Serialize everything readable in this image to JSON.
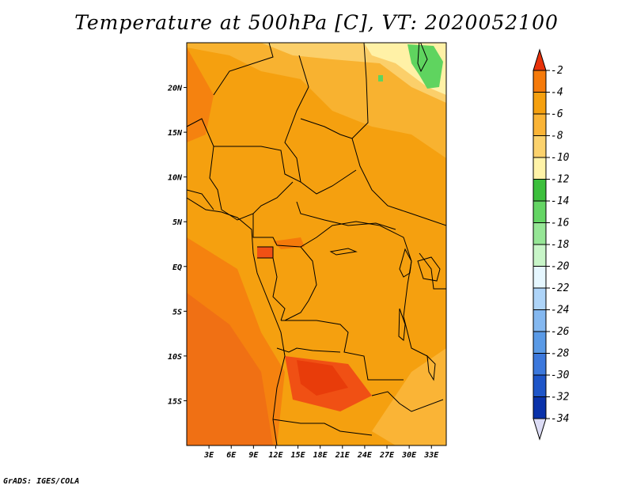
{
  "title": "Temperature at 500hPa [C], VT: 2020052100",
  "credit": "GrADS: IGES/COLA",
  "map": {
    "lat_ticks": [
      "20N",
      "15N",
      "10N",
      "5N",
      "EQ",
      "5S",
      "10S",
      "15S"
    ],
    "lon_ticks": [
      "3E",
      "6E",
      "9E",
      "12E",
      "15E",
      "18E",
      "21E",
      "24E",
      "27E",
      "30E",
      "33E"
    ],
    "lat_values": [
      20,
      15,
      10,
      5,
      0,
      -5,
      -10,
      -15
    ],
    "lon_values": [
      3,
      6,
      9,
      12,
      15,
      18,
      21,
      24,
      27,
      30,
      33
    ],
    "extent": {
      "lon_min": 0,
      "lon_max": 35,
      "lat_min": -20,
      "lat_max": 25
    }
  },
  "colorbar": {
    "labels": [
      "-2",
      "-4",
      "-6",
      "-8",
      "-10",
      "-12",
      "-14",
      "-16",
      "-18",
      "-20",
      "-22",
      "-24",
      "-26",
      "-28",
      "-30",
      "-32",
      "-34"
    ],
    "colors": [
      "#f03c0a",
      "#f57a0a",
      "#f5a00f",
      "#fab436",
      "#fbd26d",
      "#fff3a8",
      "#3cbf3c",
      "#64d564",
      "#96e696",
      "#c8f5c8",
      "#e6f7ff",
      "#aed4f8",
      "#84b8f0",
      "#5a9ae6",
      "#3c78dc",
      "#1e55c8",
      "#0a32aa",
      "#0a0a64"
    ],
    "top_arrow_color": "#e8320a",
    "bottom_arrow_color": "#dcdcf5"
  }
}
